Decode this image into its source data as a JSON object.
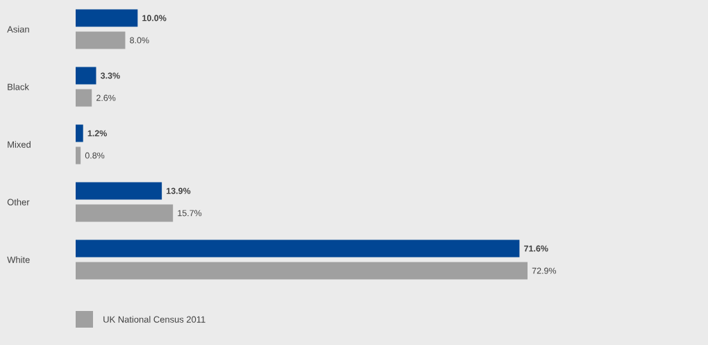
{
  "chart_data": {
    "type": "bar",
    "orientation": "horizontal",
    "categories": [
      "Asian",
      "Black",
      "Mixed",
      "Other",
      "White"
    ],
    "series": [
      {
        "color": "#014694",
        "values": [
          10.0,
          3.3,
          1.2,
          13.9,
          71.6
        ],
        "value_labels": [
          "10.0%",
          "3.3%",
          "1.2%",
          "13.9%",
          "71.6%"
        ]
      },
      {
        "name": "UK National Census 2011",
        "color": "#a0a0a0",
        "values": [
          8.0,
          2.6,
          0.8,
          15.7,
          72.9
        ],
        "value_labels": [
          "8.0%",
          "2.6%",
          "0.8%",
          "15.7%",
          "72.9%"
        ]
      }
    ],
    "legend": "bottom left"
  }
}
